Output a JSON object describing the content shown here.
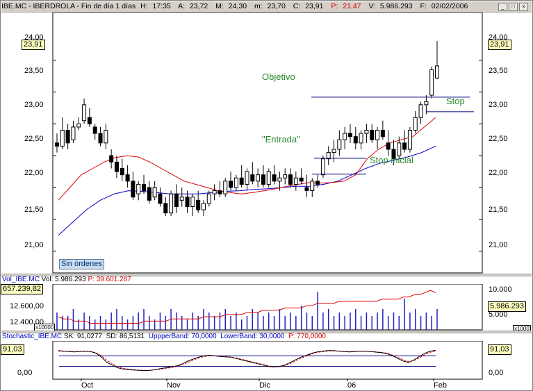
{
  "title_bar": {
    "symbol": "IBE.MC - IBERDROLA - Fin de día 1 días",
    "h_label": "H:",
    "h_value": "17:35",
    "a_label": "A:",
    "a_value": "23,72",
    "m_label": "M:",
    "m_value": "24,30",
    "min_label": "m:",
    "min_value": "23,70",
    "c_label": "C:",
    "c_value": "23,91",
    "p_label": "P:",
    "p_value": "21,47",
    "v_label": "V:",
    "v_value": "5.986.293",
    "f_label": "F:",
    "f_value": "02/02/2006"
  },
  "colors": {
    "candle": "#000000",
    "ma_short": "#e00000",
    "ma_long": "#0000c8",
    "volume_bar": "#2020c0",
    "level_line": "#000080",
    "annotation": "#2a8a2a",
    "stoch_d": "#e00000"
  },
  "chart_data": [
    {
      "type": "candlestick",
      "title": "",
      "y_ticks": [
        "21,00",
        "21,50",
        "22,00",
        "22,50",
        "23,00",
        "23,50",
        "24,00"
      ],
      "ylim": [
        20.8,
        24.4
      ],
      "x_ticks": [
        "Oct",
        "Nov",
        "Dic",
        "06",
        "Feb"
      ],
      "last_value": "23,91",
      "annotations": {
        "objetivo": "Objetivo",
        "stop": "Stop",
        "entrada": "\"Entrada\"",
        "stop_inicial": "Stop inicial"
      },
      "levels": {
        "objetivo": 23.42,
        "stop": 23.19,
        "entrada": 22.46,
        "stop_inicial": 22.21
      },
      "ma_short": [
        21.8,
        22.0,
        22.2,
        22.3,
        22.4,
        22.47,
        22.5,
        22.48,
        22.4,
        22.3,
        22.2,
        22.1,
        22.05,
        22.0,
        21.95,
        21.92,
        21.9,
        21.92,
        21.95,
        21.98,
        22.02,
        22.05,
        22.08,
        22.07,
        22.08,
        22.1,
        22.2,
        22.45,
        22.6,
        22.7,
        22.75,
        22.8,
        22.95,
        23.1
      ],
      "ma_long": [
        21.25,
        21.45,
        21.65,
        21.8,
        21.9,
        21.95,
        21.94,
        21.92,
        21.9,
        21.9,
        21.9,
        21.92,
        21.94,
        21.95,
        21.97,
        21.98,
        22.0,
        22.02,
        22.02,
        22.05,
        22.1,
        22.2,
        22.3,
        22.38,
        22.43,
        22.48,
        22.55,
        22.65
      ],
      "candles": [
        [
          22.7,
          22.85,
          22.55,
          22.65
        ],
        [
          22.65,
          23.1,
          22.6,
          22.9
        ],
        [
          22.9,
          23.0,
          22.6,
          22.7
        ],
        [
          22.75,
          23.05,
          22.7,
          22.95
        ],
        [
          22.95,
          23.1,
          22.9,
          23.0
        ],
        [
          23.05,
          23.4,
          23.0,
          23.3
        ],
        [
          23.1,
          23.25,
          22.95,
          23.0
        ],
        [
          22.95,
          23.0,
          22.75,
          22.85
        ],
        [
          22.85,
          22.95,
          22.65,
          22.7
        ],
        [
          22.7,
          23.0,
          22.6,
          22.9
        ],
        [
          22.5,
          22.6,
          22.3,
          22.4
        ],
        [
          22.4,
          22.5,
          22.15,
          22.25
        ],
        [
          22.3,
          22.45,
          22.1,
          22.2
        ],
        [
          22.2,
          22.35,
          22.0,
          22.1
        ],
        [
          22.1,
          22.25,
          21.8,
          21.85
        ],
        [
          21.9,
          22.1,
          21.8,
          22.05
        ],
        [
          22.05,
          22.2,
          21.9,
          21.95
        ],
        [
          22.0,
          22.1,
          21.75,
          21.8
        ],
        [
          21.85,
          22.1,
          21.8,
          22.0
        ],
        [
          21.9,
          22.0,
          21.7,
          21.75
        ],
        [
          21.75,
          21.85,
          21.55,
          21.6
        ],
        [
          21.6,
          21.95,
          21.55,
          21.9
        ],
        [
          21.9,
          22.05,
          21.6,
          21.7
        ],
        [
          21.8,
          22.0,
          21.7,
          21.85
        ],
        [
          21.85,
          21.95,
          21.6,
          21.7
        ],
        [
          21.7,
          21.9,
          21.55,
          21.85
        ],
        [
          21.8,
          21.95,
          21.6,
          21.65
        ],
        [
          21.65,
          21.8,
          21.55,
          21.75
        ],
        [
          21.75,
          21.95,
          21.7,
          21.9
        ],
        [
          21.9,
          22.05,
          21.8,
          21.95
        ],
        [
          21.95,
          22.1,
          21.85,
          21.9
        ],
        [
          21.9,
          22.15,
          21.85,
          22.1
        ],
        [
          22.1,
          22.25,
          21.95,
          22.0
        ],
        [
          22.0,
          22.2,
          21.95,
          22.15
        ],
        [
          22.15,
          22.35,
          22.0,
          22.05
        ],
        [
          22.05,
          22.3,
          21.95,
          22.25
        ],
        [
          22.2,
          22.4,
          22.05,
          22.1
        ],
        [
          22.1,
          22.3,
          22.0,
          22.2
        ],
        [
          22.2,
          22.35,
          22.0,
          22.05
        ],
        [
          22.05,
          22.3,
          22.0,
          22.25
        ],
        [
          22.2,
          22.35,
          22.05,
          22.1
        ],
        [
          22.1,
          22.25,
          21.95,
          22.15
        ],
        [
          22.15,
          22.3,
          22.05,
          22.2
        ],
        [
          22.2,
          22.3,
          22.0,
          22.05
        ],
        [
          22.05,
          22.25,
          21.95,
          22.15
        ],
        [
          22.15,
          22.3,
          22.05,
          22.1
        ],
        [
          22.0,
          22.2,
          21.85,
          21.95
        ],
        [
          21.95,
          22.15,
          21.85,
          22.1
        ],
        [
          22.1,
          22.2,
          22.0,
          22.05
        ],
        [
          22.2,
          22.5,
          22.15,
          22.45
        ],
        [
          22.45,
          22.65,
          22.35,
          22.55
        ],
        [
          22.55,
          22.75,
          22.4,
          22.6
        ],
        [
          22.6,
          22.9,
          22.5,
          22.75
        ],
        [
          22.75,
          22.95,
          22.6,
          22.85
        ],
        [
          22.85,
          23.0,
          22.7,
          22.8
        ],
        [
          22.8,
          22.95,
          22.6,
          22.7
        ],
        [
          22.7,
          22.9,
          22.6,
          22.85
        ],
        [
          22.85,
          23.0,
          22.7,
          22.9
        ],
        [
          22.9,
          23.0,
          22.7,
          22.75
        ],
        [
          22.75,
          22.95,
          22.6,
          22.9
        ],
        [
          22.9,
          23.05,
          22.75,
          22.8
        ],
        [
          22.7,
          22.9,
          22.5,
          22.6
        ],
        [
          22.6,
          22.75,
          22.35,
          22.45
        ],
        [
          22.5,
          22.8,
          22.45,
          22.7
        ],
        [
          22.7,
          22.9,
          22.55,
          22.6
        ],
        [
          22.6,
          22.95,
          22.55,
          22.9
        ],
        [
          22.9,
          23.2,
          22.85,
          23.1
        ],
        [
          23.1,
          23.35,
          23.0,
          23.3
        ],
        [
          23.3,
          23.45,
          23.15,
          23.35
        ],
        [
          23.45,
          23.9,
          23.4,
          23.85
        ],
        [
          23.72,
          24.3,
          23.7,
          23.91
        ]
      ]
    },
    {
      "type": "bar",
      "title": "Vol_IBE.MC",
      "vol_label": "Vol:",
      "vol_value": "5.986.293",
      "p_label": "P:",
      "p_value": "39.601.287",
      "box_value": "657.239,82",
      "y_ticks": [
        "12.600,00",
        "12.400,00"
      ],
      "right_ticks": [
        "10.000",
        "5.000"
      ],
      "multiplier_left": "x10000",
      "multiplier_right": "x1000",
      "last_value": "5.986.293",
      "volume_values": [
        5,
        4,
        4,
        6,
        3,
        5,
        4,
        3,
        4,
        3,
        5,
        6,
        4,
        3,
        4,
        5,
        6,
        4,
        3,
        5,
        4,
        6,
        5,
        4,
        3,
        5,
        4,
        6,
        5,
        4,
        5,
        6,
        4,
        5,
        3,
        4,
        6,
        5,
        4,
        5,
        4,
        6,
        4,
        5,
        4,
        7,
        5,
        4,
        11,
        5,
        6,
        4,
        5,
        4,
        5,
        6,
        4,
        5,
        4,
        5,
        6,
        4,
        5,
        4,
        9,
        5,
        6,
        4,
        5,
        4,
        6
      ],
      "obv_values": [
        14,
        13,
        13,
        12,
        12,
        12,
        11,
        11,
        11,
        11,
        11,
        11,
        11,
        11,
        11,
        11,
        12,
        12,
        12,
        12,
        12,
        13,
        13,
        13,
        13,
        13,
        13,
        14,
        14,
        14,
        14,
        15,
        15,
        15,
        15,
        16,
        16,
        16,
        17,
        17,
        17,
        17,
        18,
        18,
        18,
        18,
        19,
        19,
        20,
        20,
        20,
        20,
        21,
        21,
        21,
        21,
        21,
        21,
        21,
        21,
        22,
        22,
        22,
        22,
        23,
        23,
        24,
        24,
        25,
        26,
        25
      ]
    },
    {
      "type": "line",
      "title": "Stochastic_IBE.MC",
      "sk_label": "SK:",
      "sk_value": "91,0277",
      "sd_label": "SD:",
      "sd_value": "86,5131",
      "upper_label": "UppperBand:",
      "upper_value": "70,0000",
      "lower_label": "LowerBand:",
      "lower_value": "30,0000",
      "p_label": "P:",
      "p_value": "770,0000",
      "box_value": "91,03",
      "y_ticks": [
        "0,00"
      ],
      "bands": [
        70,
        30
      ],
      "sk": [
        90,
        88,
        86,
        85,
        87,
        88,
        86,
        80,
        65,
        45,
        35,
        25,
        20,
        18,
        16,
        15,
        14,
        15,
        18,
        22,
        25,
        28,
        32,
        40,
        50,
        58,
        65,
        70,
        72,
        70,
        68,
        66,
        65,
        60,
        55,
        50,
        45,
        40,
        35,
        30,
        28,
        30,
        35,
        45,
        55,
        65,
        72,
        80,
        85,
        88,
        90,
        90,
        88,
        86,
        85,
        86,
        88,
        88,
        86,
        84,
        82,
        78,
        70,
        60,
        50,
        45,
        55,
        68,
        80,
        88,
        91
      ],
      "sd": [
        88,
        87,
        86,
        86,
        86,
        87,
        86,
        82,
        70,
        52,
        40,
        30,
        23,
        20,
        18,
        16,
        15,
        15,
        17,
        20,
        23,
        26,
        30,
        36,
        45,
        54,
        62,
        67,
        70,
        70,
        68,
        67,
        66,
        62,
        57,
        52,
        47,
        42,
        37,
        32,
        29,
        29,
        33,
        41,
        51,
        61,
        69,
        77,
        83,
        86,
        88,
        89,
        88,
        87,
        86,
        86,
        87,
        87,
        86,
        85,
        83,
        80,
        73,
        64,
        55,
        48,
        52,
        63,
        75,
        84,
        87
      ]
    }
  ],
  "status": {
    "orders_label": "Sin órdenes"
  },
  "controls": {
    "minimize": "_",
    "maximize": "□",
    "close": "×"
  }
}
